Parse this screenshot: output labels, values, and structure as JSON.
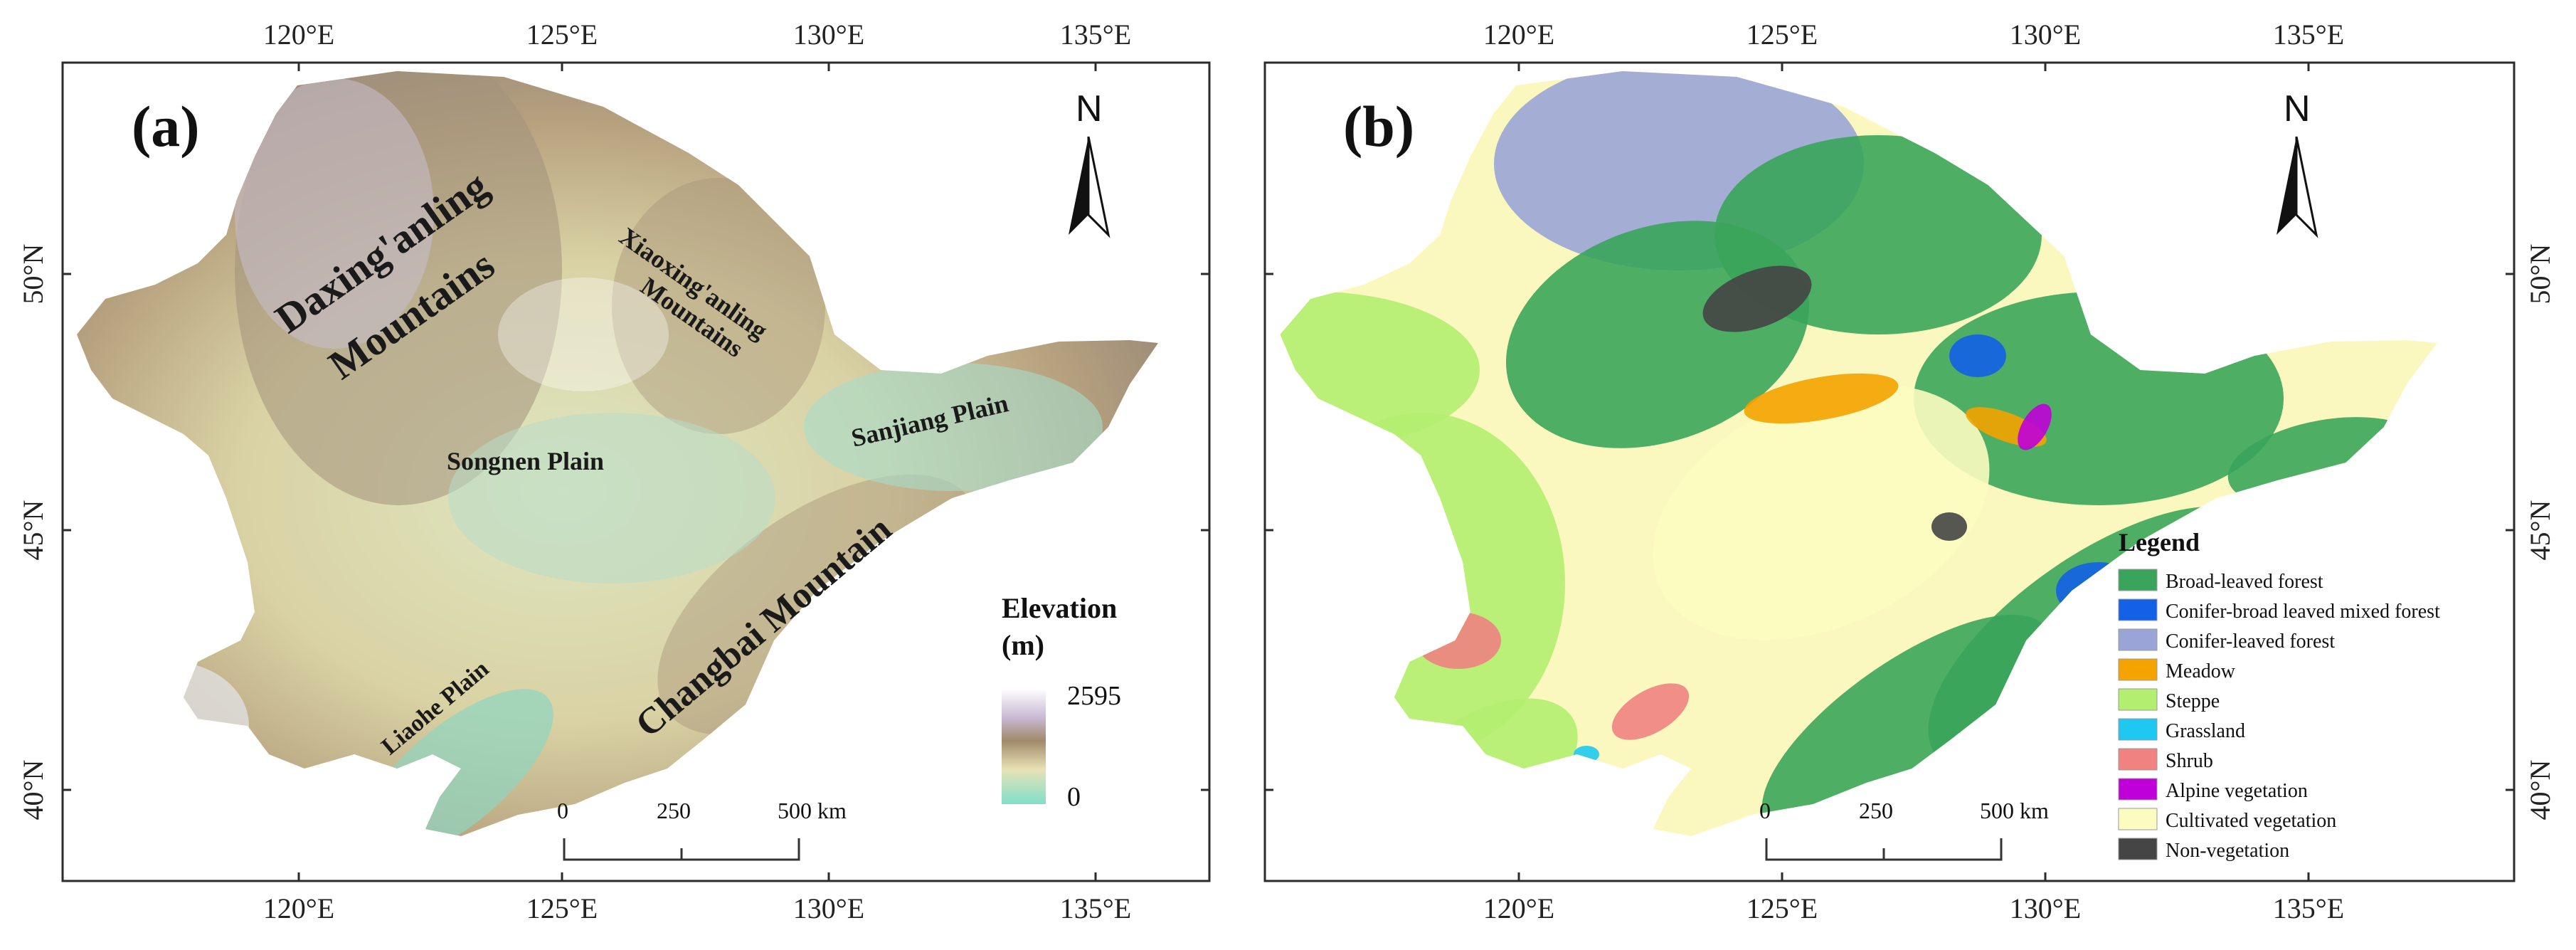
{
  "panels": {
    "a": {
      "tag": "(a)"
    },
    "b": {
      "tag": "(b)"
    }
  },
  "axes": {
    "longitudes": [
      "120°E",
      "125°E",
      "130°E",
      "135°E"
    ],
    "latitudes": [
      "50°N",
      "45°N",
      "40°N"
    ]
  },
  "north_arrow": {
    "letter": "N"
  },
  "regions": {
    "daxing_1": "Daxing'anling",
    "daxing_2": "Mountains",
    "xiaoxing_1": "Xiaoxing'anling",
    "xiaoxing_2": "Mountains",
    "songnen": "Songnen Plain",
    "sanjiang": "Sanjiang Plain",
    "changbai": "Changbai Mountain",
    "liaohe": "Liaohe Plain"
  },
  "elevation_legend": {
    "title_1": "Elevation",
    "title_2": "(m)",
    "max": "2595",
    "min": "0"
  },
  "scale_bar": {
    "labels": [
      "0",
      "250",
      "500 km"
    ]
  },
  "vegetation_legend": {
    "title": "Legend",
    "items": [
      {
        "label": "Broad-leaved forest",
        "color": "#3aa55a"
      },
      {
        "label": "Conifer-broad leaved mixed forest",
        "color": "#1460e6"
      },
      {
        "label": "Conifer-leaved forest",
        "color": "#9aa4d6"
      },
      {
        "label": "Meadow",
        "color": "#f4a300"
      },
      {
        "label": "Steppe",
        "color": "#b4ee70"
      },
      {
        "label": "Grassland",
        "color": "#1ec8f0"
      },
      {
        "label": "Shrub",
        "color": "#f08282"
      },
      {
        "label": "Alpine vegetation",
        "color": "#c000d8"
      },
      {
        "label": "Cultivated vegetation",
        "color": "#fcfcc0"
      },
      {
        "label": "Non-vegetation",
        "color": "#454545"
      }
    ]
  },
  "colors": {
    "elev_high": "#d8c8dc",
    "elev_mid": "#b09a7a",
    "elev_low": "#e2ddb0",
    "elev_plain": "#9fd8c4",
    "frame": "#2b2b2b"
  }
}
